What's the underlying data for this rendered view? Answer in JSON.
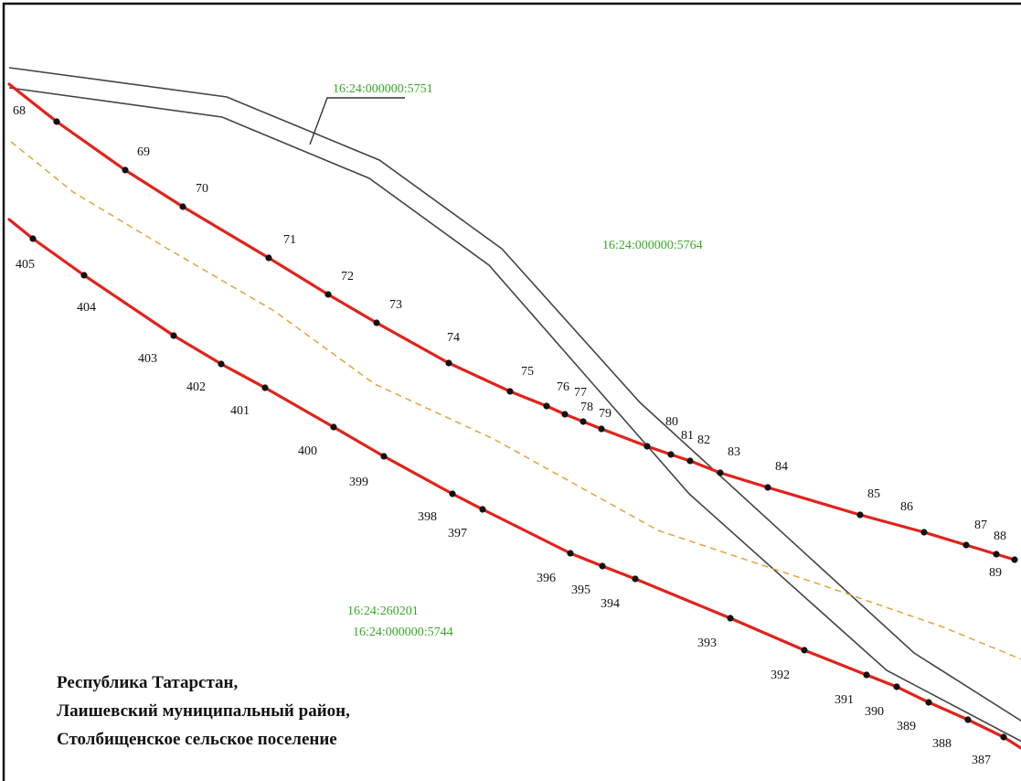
{
  "cadastral_labels": {
    "parcel_5751": "16:24:000000:5751",
    "parcel_5764": "16:24:000000:5764",
    "quarter_260201": "16:24:260201",
    "parcel_5744": "16:24:000000:5744"
  },
  "region_text": {
    "line1": "Республика Татарстан,",
    "line2": "Лаишевский муниципальный район,",
    "line3": "Столбищенское сельское поселение"
  },
  "colors": {
    "boundary": "#e0231b",
    "cadastral_text": "#3aa628",
    "dashed_line": "#e5a33b",
    "parcel_outline": "#444444"
  },
  "upper_boundary_points": [
    "68",
    "69",
    "70",
    "71",
    "72",
    "73",
    "74",
    "75",
    "76",
    "77",
    "78",
    "79",
    "80",
    "81",
    "82",
    "83",
    "84",
    "85",
    "86",
    "87",
    "88",
    "89"
  ],
  "lower_boundary_points": [
    "405",
    "404",
    "403",
    "402",
    "401",
    "400",
    "399",
    "398",
    "397",
    "396",
    "395",
    "394",
    "393",
    "392",
    "391",
    "390",
    "389",
    "388",
    "387"
  ]
}
